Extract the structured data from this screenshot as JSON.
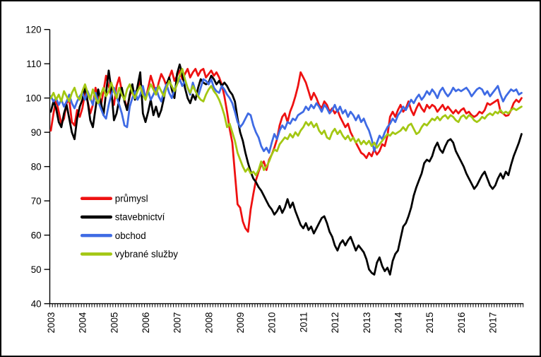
{
  "frame": {
    "background": "#ffffff",
    "border_color": "#000000"
  },
  "chart_data": {
    "type": "line",
    "title": "",
    "xlabel": "",
    "ylabel": "",
    "x_unit": "month",
    "x_start": "2003-01",
    "x_end": "2017-12",
    "points_per_series": 180,
    "grid": false,
    "legend_position": "inside-left",
    "ylim": [
      40,
      120
    ],
    "y_ticks": [
      40,
      50,
      60,
      70,
      80,
      90,
      100,
      110,
      120
    ],
    "x_tick_labels": [
      "2003",
      "2004",
      "2005",
      "2006",
      "2007",
      "2008",
      "2009",
      "2010",
      "2011",
      "2012",
      "2013",
      "2014",
      "2015",
      "2016",
      "2017"
    ],
    "series": [
      {
        "name": "průmysl",
        "color": "#ee1111",
        "values": [
          90.5,
          95.5,
          99.5,
          96.0,
          92.5,
          94.0,
          98.5,
          99.5,
          93.0,
          92.0,
          96.5,
          94.5,
          97.0,
          101.5,
          99.0,
          95.5,
          98.0,
          103.0,
          100.0,
          97.5,
          102.0,
          106.5,
          103.5,
          100.5,
          98.0,
          103.5,
          106.0,
          102.0,
          99.5,
          97.0,
          100.5,
          103.0,
          100.0,
          102.5,
          105.0,
          101.5,
          99.5,
          103.0,
          106.5,
          104.0,
          101.0,
          104.5,
          107.0,
          105.5,
          103.5,
          106.0,
          108.0,
          105.0,
          106.5,
          108.0,
          105.5,
          107.0,
          108.5,
          106.0,
          107.5,
          108.5,
          106.5,
          108.0,
          108.5,
          106.0,
          107.0,
          108.0,
          106.5,
          107.5,
          106.0,
          104.0,
          100.5,
          96.0,
          91.0,
          87.0,
          78.0,
          69.0,
          68.0,
          64.0,
          62.0,
          61.0,
          67.5,
          72.0,
          76.0,
          78.5,
          80.5,
          81.5,
          79.0,
          82.0,
          83.5,
          85.5,
          88.0,
          92.0,
          94.5,
          95.5,
          93.0,
          96.0,
          98.0,
          100.5,
          103.5,
          107.5,
          106.0,
          104.5,
          102.0,
          99.5,
          101.5,
          100.0,
          98.0,
          97.0,
          99.0,
          98.0,
          96.0,
          97.0,
          95.5,
          96.5,
          94.5,
          93.0,
          91.5,
          92.5,
          90.0,
          88.5,
          87.0,
          85.5,
          84.0,
          83.5,
          82.5,
          84.0,
          83.0,
          85.0,
          83.5,
          84.5,
          86.5,
          86.0,
          89.0,
          94.5,
          96.0,
          94.5,
          96.5,
          98.0,
          96.0,
          97.0,
          99.0,
          96.5,
          95.0,
          97.0,
          98.5,
          97.0,
          96.0,
          98.0,
          97.0,
          98.0,
          97.5,
          96.0,
          97.0,
          98.0,
          96.5,
          97.5,
          96.5,
          95.5,
          96.5,
          95.5,
          96.5,
          97.0,
          95.5,
          96.0,
          95.0,
          94.5,
          95.0,
          96.0,
          95.5,
          96.5,
          98.5,
          98.0,
          98.5,
          99.0,
          99.5,
          96.0,
          95.5,
          94.8,
          95.0,
          96.5,
          98.5,
          99.5,
          98.8,
          100.0
        ]
      },
      {
        "name": "stavebnictví",
        "color": "#000000",
        "values": [
          96.0,
          99.0,
          97.0,
          93.0,
          91.5,
          95.5,
          98.0,
          94.0,
          90.0,
          88.0,
          94.0,
          97.5,
          99.5,
          103.5,
          99.0,
          93.5,
          91.5,
          97.0,
          102.5,
          99.0,
          95.0,
          101.5,
          108.0,
          102.5,
          93.5,
          95.5,
          99.5,
          103.0,
          99.0,
          96.5,
          101.0,
          104.0,
          99.5,
          103.5,
          107.5,
          95.5,
          93.0,
          96.0,
          99.5,
          95.0,
          97.5,
          94.5,
          96.5,
          100.0,
          104.0,
          106.0,
          102.5,
          100.0,
          107.0,
          109.8,
          107.0,
          103.0,
          100.0,
          98.5,
          101.0,
          99.5,
          103.0,
          105.5,
          104.5,
          104.0,
          104.5,
          106.5,
          105.5,
          104.0,
          105.0,
          103.5,
          104.5,
          103.5,
          102.0,
          101.0,
          99.0,
          94.0,
          90.0,
          87.5,
          84.0,
          81.0,
          78.5,
          76.5,
          75.5,
          74.0,
          73.0,
          71.5,
          70.0,
          68.5,
          67.5,
          66.0,
          67.0,
          68.5,
          66.5,
          68.0,
          70.5,
          68.0,
          69.5,
          67.0,
          65.0,
          63.0,
          62.0,
          63.5,
          61.5,
          62.5,
          60.5,
          62.0,
          63.5,
          65.0,
          65.5,
          63.5,
          61.0,
          59.5,
          57.0,
          55.5,
          57.5,
          58.5,
          57.0,
          58.5,
          59.5,
          57.5,
          55.5,
          57.0,
          56.0,
          55.0,
          53.0,
          50.0,
          49.0,
          48.5,
          52.0,
          53.5,
          51.0,
          49.5,
          50.5,
          48.5,
          52.5,
          54.5,
          55.5,
          59.0,
          62.5,
          63.5,
          65.5,
          68.0,
          71.5,
          74.0,
          76.0,
          78.0,
          81.0,
          82.0,
          81.5,
          83.0,
          85.5,
          87.0,
          85.0,
          84.0,
          86.0,
          87.5,
          88.0,
          87.0,
          84.5,
          83.0,
          81.5,
          80.0,
          78.0,
          76.5,
          75.0,
          73.5,
          74.5,
          76.0,
          77.5,
          78.5,
          76.5,
          74.5,
          73.5,
          74.5,
          76.5,
          78.0,
          76.5,
          78.5,
          77.5,
          80.5,
          83.0,
          85.0,
          87.0,
          89.5
        ]
      },
      {
        "name": "obchod",
        "color": "#3f6be4",
        "values": [
          100.5,
          99.0,
          100.0,
          98.0,
          99.5,
          97.5,
          99.0,
          101.0,
          98.5,
          97.0,
          99.0,
          100.5,
          101.5,
          99.5,
          102.0,
          100.0,
          98.0,
          101.5,
          99.0,
          97.0,
          95.0,
          94.0,
          98.0,
          101.0,
          103.0,
          100.5,
          98.0,
          95.5,
          92.0,
          91.5,
          97.5,
          100.0,
          102.0,
          99.5,
          101.0,
          103.5,
          100.0,
          102.0,
          99.5,
          101.0,
          103.0,
          100.5,
          99.0,
          102.0,
          104.0,
          101.5,
          100.0,
          102.5,
          104.0,
          105.5,
          103.5,
          105.0,
          103.0,
          101.0,
          104.5,
          102.0,
          100.5,
          103.0,
          105.5,
          105.0,
          104.0,
          105.5,
          103.0,
          102.0,
          101.5,
          103.5,
          102.5,
          101.0,
          100.0,
          98.5,
          96.0,
          93.0,
          91.5,
          92.5,
          94.0,
          95.5,
          95.0,
          92.0,
          90.0,
          88.5,
          86.0,
          84.5,
          85.5,
          84.0,
          87.0,
          89.5,
          88.0,
          90.5,
          92.0,
          91.0,
          93.0,
          92.5,
          94.0,
          93.5,
          95.0,
          95.5,
          96.0,
          97.5,
          96.5,
          98.0,
          97.0,
          98.5,
          97.5,
          96.0,
          98.0,
          97.0,
          95.5,
          96.5,
          98.0,
          96.0,
          97.5,
          95.5,
          96.5,
          94.5,
          96.0,
          95.0,
          93.5,
          95.0,
          93.0,
          94.0,
          92.0,
          90.5,
          88.0,
          84.5,
          87.0,
          89.0,
          88.0,
          90.0,
          91.5,
          92.5,
          94.0,
          93.0,
          95.0,
          96.0,
          97.5,
          96.5,
          98.0,
          99.5,
          98.5,
          100.0,
          101.0,
          99.5,
          100.5,
          102.0,
          101.0,
          102.5,
          101.5,
          100.0,
          102.0,
          103.0,
          101.5,
          100.5,
          101.5,
          103.0,
          102.0,
          102.5,
          102.0,
          102.5,
          103.0,
          102.0,
          100.5,
          101.5,
          102.5,
          103.0,
          102.5,
          101.0,
          102.0,
          100.5,
          101.5,
          102.5,
          103.5,
          101.0,
          99.0,
          100.5,
          101.5,
          102.5,
          102.0,
          102.5,
          101.0,
          101.5
        ]
      },
      {
        "name": "vybrané služby",
        "color": "#a3c713",
        "values": [
          100.0,
          101.5,
          99.5,
          101.0,
          99.0,
          102.0,
          100.5,
          99.0,
          101.5,
          103.0,
          100.5,
          99.5,
          102.0,
          104.0,
          101.5,
          99.5,
          102.5,
          100.0,
          98.5,
          101.0,
          103.0,
          100.5,
          102.0,
          104.5,
          102.0,
          100.0,
          103.0,
          101.0,
          99.5,
          102.5,
          104.0,
          101.5,
          100.0,
          102.0,
          103.5,
          101.0,
          99.5,
          102.0,
          104.0,
          102.5,
          101.0,
          103.5,
          102.0,
          100.5,
          103.0,
          105.0,
          103.5,
          102.0,
          104.0,
          106.5,
          108.5,
          105.5,
          103.0,
          101.5,
          103.5,
          102.0,
          100.5,
          99.5,
          99.0,
          101.0,
          102.5,
          103.5,
          102.0,
          101.0,
          99.5,
          97.5,
          95.0,
          91.5,
          92.5,
          90.0,
          87.5,
          84.0,
          82.0,
          80.0,
          78.5,
          79.5,
          78.0,
          78.5,
          77.5,
          79.0,
          81.5,
          79.0,
          80.0,
          81.5,
          83.5,
          85.0,
          84.5,
          86.5,
          87.5,
          88.5,
          88.0,
          89.5,
          88.5,
          90.0,
          89.0,
          90.5,
          91.5,
          93.0,
          92.0,
          93.0,
          91.5,
          92.5,
          90.5,
          89.5,
          90.5,
          88.5,
          88.0,
          90.0,
          91.0,
          89.5,
          90.5,
          89.0,
          88.0,
          89.0,
          87.5,
          88.5,
          87.0,
          88.0,
          86.5,
          87.5,
          86.5,
          87.5,
          86.0,
          87.0,
          85.5,
          86.5,
          87.5,
          88.5,
          89.5,
          89.0,
          90.0,
          89.5,
          90.0,
          90.5,
          91.5,
          90.5,
          92.0,
          92.5,
          91.0,
          89.5,
          90.0,
          91.5,
          92.5,
          92.0,
          93.0,
          94.0,
          93.5,
          94.5,
          93.5,
          94.5,
          95.0,
          94.0,
          95.0,
          94.5,
          93.5,
          93.0,
          94.5,
          95.0,
          94.0,
          95.0,
          94.5,
          93.5,
          93.0,
          93.5,
          94.5,
          94.0,
          95.0,
          95.5,
          95.0,
          96.0,
          95.5,
          96.5,
          95.5,
          96.0,
          95.5,
          96.5,
          97.0,
          96.5,
          97.0,
          97.5
        ]
      }
    ]
  }
}
